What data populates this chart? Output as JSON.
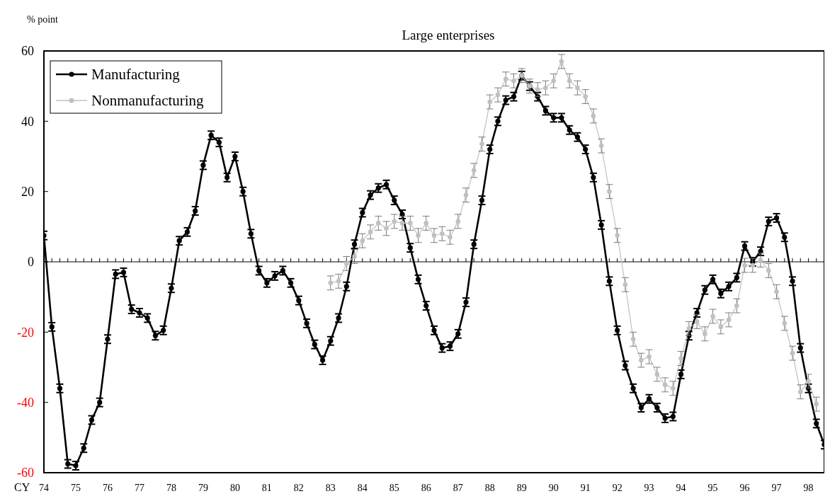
{
  "chart_data": {
    "type": "line",
    "title": "Large enterprises",
    "xlabel": "CY",
    "ylabel": "% point",
    "x": [
      1974,
      1974.25,
      1974.5,
      1974.75,
      1975,
      1975.25,
      1975.5,
      1975.75,
      1976,
      1976.25,
      1976.5,
      1976.75,
      1977,
      1977.25,
      1977.5,
      1977.75,
      1978,
      1978.25,
      1978.5,
      1978.75,
      1979,
      1979.25,
      1979.5,
      1979.75,
      1980,
      1980.25,
      1980.5,
      1980.75,
      1981,
      1981.25,
      1981.5,
      1981.75,
      1982,
      1982.25,
      1982.5,
      1982.75,
      1983,
      1983.25,
      1983.5,
      1983.75,
      1984,
      1984.25,
      1984.5,
      1984.75,
      1985,
      1985.25,
      1985.5,
      1985.75,
      1986,
      1986.25,
      1986.5,
      1986.75,
      1987,
      1987.25,
      1987.5,
      1987.75,
      1988,
      1988.25,
      1988.5,
      1988.75,
      1989,
      1989.25,
      1989.5,
      1989.75,
      1990,
      1990.25,
      1990.5,
      1990.75,
      1991,
      1991.25,
      1991.5,
      1991.75,
      1992,
      1992.25,
      1992.5,
      1992.75,
      1993,
      1993.25,
      1993.5,
      1993.75,
      1994,
      1994.25,
      1994.5,
      1994.75,
      1995,
      1995.25,
      1995.5,
      1995.75,
      1996,
      1996.25,
      1996.5,
      1996.75,
      1997,
      1997.25,
      1997.5,
      1997.75,
      1998,
      1998.25,
      1998.5
    ],
    "series": [
      {
        "name": "Manufacturing",
        "color": "#000000",
        "values": [
          7.5,
          -18.5,
          -36,
          -57.5,
          -58,
          -53,
          -45,
          -40,
          -22,
          -3.5,
          -3,
          -13.5,
          -14.5,
          -16,
          -21,
          -19.5,
          -7.5,
          6,
          8.5,
          14.5,
          27.5,
          36,
          34,
          24,
          30,
          20,
          8,
          -2.5,
          -6,
          -4,
          -2.5,
          -6,
          -11,
          -17.5,
          -23.5,
          -28,
          -22.5,
          -16,
          -7,
          5,
          14,
          19,
          21,
          22,
          17.5,
          13.5,
          4,
          -5,
          -12.5,
          -19.5,
          -24.5,
          -24,
          -20.5,
          -11.5,
          5,
          17.5,
          32,
          40,
          46,
          47,
          53,
          50,
          47,
          43,
          41,
          41,
          37.5,
          35.5,
          32,
          24,
          10.5,
          -5.5,
          -19.5,
          -29.5,
          -36,
          -41.5,
          -39,
          -41.5,
          -44.5,
          -44,
          -32,
          -21,
          -14.5,
          -8,
          -5,
          -9,
          -7,
          -4.5,
          4.5,
          0,
          3,
          11.5,
          12.5,
          7,
          -5.5,
          -24.5,
          -36,
          -46,
          -52
        ],
        "errors": [
          1.2,
          1.2,
          1.2,
          1.2,
          1.2,
          1.2,
          1.2,
          1.2,
          1.2,
          1.2,
          1.2,
          1.2,
          1.2,
          1.2,
          1.2,
          1.2,
          1.2,
          1.2,
          1.2,
          1.2,
          1.2,
          1.2,
          1.2,
          1.2,
          1.2,
          1.2,
          1.2,
          1.2,
          1.2,
          1.2,
          1.2,
          1.2,
          1.2,
          1.2,
          1.2,
          1.2,
          1.2,
          1.2,
          1.2,
          1.2,
          1.2,
          1.2,
          1.2,
          1.2,
          1.2,
          1.2,
          1.2,
          1.2,
          1.2,
          1.2,
          1.2,
          1.2,
          1.2,
          1.2,
          1.2,
          1.2,
          1.2,
          1.2,
          1.2,
          1.2,
          1.2,
          1.2,
          1.2,
          1.2,
          1.2,
          1.2,
          1.2,
          1.2,
          1.2,
          1.2,
          1.2,
          1.2,
          1.2,
          1.2,
          1.2,
          1.2,
          1.2,
          1.2,
          1.2,
          1.2,
          1.2,
          1.2,
          1.2,
          1.2,
          1.2,
          1.2,
          1.2,
          1.2,
          1.2,
          1.2,
          1.2,
          1.2,
          1.2,
          1.2,
          1.2,
          1.2,
          1.2,
          1.2,
          1.2
        ]
      },
      {
        "name": "Nonmanufacturing",
        "color": "#c0c0c0",
        "values": [
          null,
          null,
          null,
          null,
          null,
          null,
          null,
          null,
          null,
          null,
          null,
          null,
          null,
          null,
          null,
          null,
          null,
          null,
          null,
          null,
          null,
          null,
          null,
          null,
          null,
          null,
          null,
          null,
          null,
          null,
          null,
          null,
          null,
          null,
          null,
          null,
          -6,
          -5.5,
          -0.5,
          1.5,
          6,
          8.5,
          11,
          9.5,
          11.5,
          11,
          11,
          7.5,
          11,
          7.5,
          8,
          7,
          11.5,
          19,
          26,
          33.5,
          45.5,
          47.5,
          52,
          51.5,
          53,
          50,
          49,
          49.5,
          51.5,
          57,
          51.5,
          49.5,
          47,
          41.5,
          33,
          20,
          7.5,
          -6.5,
          -22,
          -28,
          -27,
          -32,
          -35,
          -36,
          -27.5,
          -19,
          -17,
          -20.5,
          -15.5,
          -18.5,
          -16.5,
          -12.5,
          -1,
          -1,
          0.5,
          -2.5,
          -8.5,
          -17.5,
          -26,
          -37,
          -34,
          -40.5,
          null
        ],
        "errors": [
          null,
          null,
          null,
          null,
          null,
          null,
          null,
          null,
          null,
          null,
          null,
          null,
          null,
          null,
          null,
          null,
          null,
          null,
          null,
          null,
          null,
          null,
          null,
          null,
          null,
          null,
          null,
          null,
          null,
          null,
          null,
          null,
          null,
          null,
          null,
          null,
          2,
          2,
          2,
          2,
          2,
          2,
          2,
          2,
          2,
          2,
          2,
          2,
          2,
          2,
          2,
          2,
          2,
          2,
          2,
          2,
          2,
          2,
          2,
          2,
          2,
          2,
          2,
          2,
          2,
          2,
          2,
          2,
          2,
          2,
          2,
          2,
          2,
          2,
          2,
          2,
          2,
          2,
          2,
          2,
          2,
          2,
          2,
          2,
          2,
          2,
          2,
          2,
          2,
          2,
          2,
          2,
          2,
          2,
          2,
          2,
          2,
          2,
          null
        ]
      }
    ],
    "xlim": [
      1974,
      1998.5
    ],
    "xticks": [
      {
        "value": 1974,
        "label": "74"
      },
      {
        "value": 1975,
        "label": "75"
      },
      {
        "value": 1976,
        "label": "76"
      },
      {
        "value": 1977,
        "label": "77"
      },
      {
        "value": 1978,
        "label": "78"
      },
      {
        "value": 1979,
        "label": "79"
      },
      {
        "value": 1980,
        "label": "80"
      },
      {
        "value": 1981,
        "label": "81"
      },
      {
        "value": 1982,
        "label": "82"
      },
      {
        "value": 1983,
        "label": "83"
      },
      {
        "value": 1984,
        "label": "84"
      },
      {
        "value": 1985,
        "label": "85"
      },
      {
        "value": 1986,
        "label": "86"
      },
      {
        "value": 1987,
        "label": "87"
      },
      {
        "value": 1988,
        "label": "88"
      },
      {
        "value": 1989,
        "label": "89"
      },
      {
        "value": 1990,
        "label": "90"
      },
      {
        "value": 1991,
        "label": "91"
      },
      {
        "value": 1992,
        "label": "92"
      },
      {
        "value": 1993,
        "label": "93"
      },
      {
        "value": 1994,
        "label": "94"
      },
      {
        "value": 1995,
        "label": "95"
      },
      {
        "value": 1996,
        "label": "96"
      },
      {
        "value": 1997,
        "label": "97"
      },
      {
        "value": 1998,
        "label": "98"
      }
    ],
    "ylim": [
      -60,
      60
    ],
    "yticks": [
      -60,
      -40,
      -20,
      0,
      20,
      40,
      60
    ],
    "ref_lines": [
      {
        "axis": "y",
        "value": 0
      }
    ],
    "marker": "circle",
    "legend": "top left",
    "grid": false
  }
}
